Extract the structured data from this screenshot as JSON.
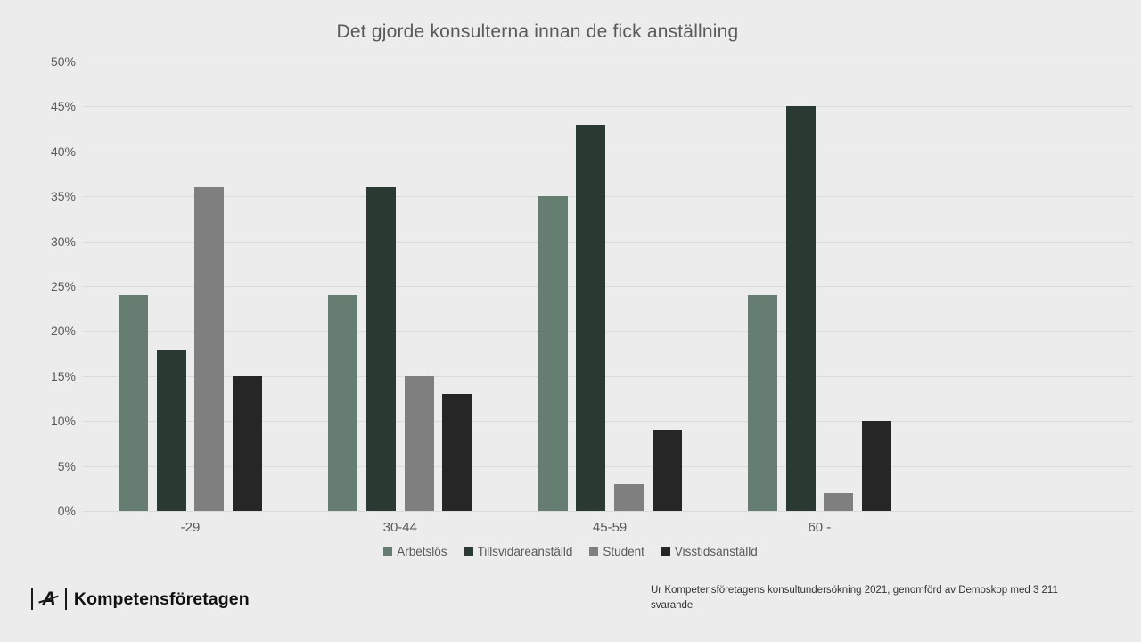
{
  "title": "Det gjorde konsulterna innan de fick anställning",
  "chart_data": {
    "type": "bar",
    "categories": [
      "-29",
      "30-44",
      "45-59",
      "60 -"
    ],
    "series": [
      {
        "name": "Arbetslös",
        "color": "#667E72",
        "values": [
          24,
          24,
          35,
          24
        ]
      },
      {
        "name": "Tillsvidareanställd",
        "color": "#2A3A32",
        "values": [
          18,
          36,
          43,
          45
        ]
      },
      {
        "name": "Student",
        "color": "#7F7F7F",
        "values": [
          36,
          15,
          3,
          2
        ]
      },
      {
        "name": "Visstidsanställd",
        "color": "#262626",
        "values": [
          15,
          13,
          9,
          10
        ]
      }
    ],
    "title": "Det gjorde konsulterna innan de fick anställning",
    "xlabel": "",
    "ylabel": "",
    "ylim": [
      0,
      50
    ],
    "ytick_step": 5,
    "ytick_suffix": "%",
    "grid": true,
    "legend_position": "bottom"
  },
  "footer": {
    "logo_text": "Kompetensföretagen",
    "source_lines": [
      "Ur Kompetensföretagens konsultundersökning 2021, genomförd av Demoskop med 3 211",
      "svarande"
    ]
  }
}
